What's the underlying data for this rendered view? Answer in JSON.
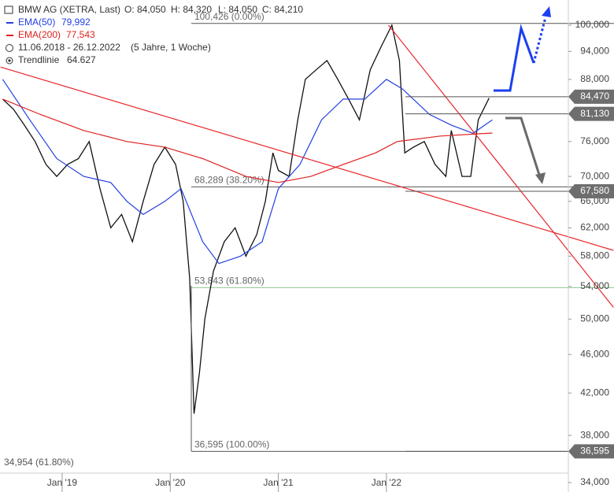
{
  "chart_data": {
    "type": "line",
    "log_scale": true,
    "ohlc": [
      "O: 84,050",
      "H: 84,320",
      "L: 84,050",
      "C: 84,210"
    ],
    "period": "11.06.2018 - 26.12.2022",
    "range_label": "(5 Jahre, 1 Woche)",
    "xlim": [
      2018.425,
      2023.683
    ],
    "xticks": [
      {
        "value": 2019,
        "label": "Jan '19"
      },
      {
        "value": 2020,
        "label": "Jan '20"
      },
      {
        "value": 2021,
        "label": "Jan '21"
      },
      {
        "value": 2022,
        "label": "Jan '22"
      }
    ],
    "ylim": [
      34000,
      100000
    ],
    "yticks": [
      {
        "value": 100000,
        "label": "100,000"
      },
      {
        "value": 94000,
        "label": "94,000"
      },
      {
        "value": 88000,
        "label": "88,000"
      },
      {
        "value": 76000,
        "label": "76,000"
      },
      {
        "value": 70000,
        "label": "70,000"
      },
      {
        "value": 66000,
        "label": "66,000"
      },
      {
        "value": 62000,
        "label": "62,000"
      },
      {
        "value": 58000,
        "label": "58,000"
      },
      {
        "value": 54000,
        "label": "54,000"
      },
      {
        "value": 50000,
        "label": "50,000"
      },
      {
        "value": 46000,
        "label": "46,000"
      },
      {
        "value": 42000,
        "label": "42,000"
      },
      {
        "value": 38000,
        "label": "38,000"
      },
      {
        "value": 34000,
        "label": "34,000"
      }
    ],
    "series": [
      {
        "name": "BMW AG (XETRA, Last)",
        "color": "#111111",
        "x": [
          2018.45,
          2018.55,
          2018.65,
          2018.75,
          2018.85,
          2018.95,
          2019.05,
          2019.15,
          2019.25,
          2019.35,
          2019.45,
          2019.55,
          2019.65,
          2019.75,
          2019.85,
          2019.95,
          2020.05,
          2020.12,
          2020.18,
          2020.22,
          2020.27,
          2020.32,
          2020.4,
          2020.5,
          2020.6,
          2020.7,
          2020.8,
          2020.88,
          2020.95,
          2021.0,
          2021.1,
          2021.18,
          2021.25,
          2021.35,
          2021.45,
          2021.55,
          2021.65,
          2021.75,
          2021.85,
          2021.95,
          2022.05,
          2022.12,
          2022.17,
          2022.25,
          2022.35,
          2022.45,
          2022.55,
          2022.6,
          2022.7,
          2022.78,
          2022.85,
          2022.95
        ],
        "values": [
          84000,
          82000,
          79000,
          76000,
          72000,
          70000,
          72000,
          73000,
          76000,
          68000,
          62000,
          64000,
          60000,
          66000,
          72000,
          75000,
          72000,
          66000,
          55000,
          40000,
          44000,
          50000,
          56000,
          60000,
          62000,
          58000,
          61000,
          66000,
          74000,
          71000,
          70000,
          80000,
          88000,
          90000,
          92000,
          88000,
          84000,
          80000,
          90000,
          95000,
          100000,
          92000,
          74000,
          75000,
          76000,
          72000,
          70000,
          78000,
          70000,
          70000,
          80000,
          84210
        ]
      },
      {
        "name": "EMA(50)",
        "last_label": "79,992",
        "color": "#2440e0",
        "x": [
          2018.45,
          2018.7,
          2018.95,
          2019.2,
          2019.45,
          2019.6,
          2019.75,
          2019.95,
          2020.1,
          2020.3,
          2020.45,
          2020.65,
          2020.85,
          2021.0,
          2021.2,
          2021.4,
          2021.6,
          2021.8,
          2022.0,
          2022.15,
          2022.4,
          2022.6,
          2022.8,
          2022.98
        ],
        "values": [
          88000,
          80000,
          73000,
          70000,
          69000,
          66000,
          64000,
          66000,
          68000,
          60000,
          57000,
          58000,
          60000,
          68000,
          72000,
          80000,
          84000,
          84000,
          88000,
          86000,
          81000,
          79000,
          77500,
          79992
        ]
      },
      {
        "name": "EMA(200)",
        "last_label": "77,543",
        "color": "#e02020",
        "x": [
          2018.45,
          2018.8,
          2019.2,
          2019.6,
          2019.95,
          2020.3,
          2020.7,
          2021.0,
          2021.3,
          2021.6,
          2021.9,
          2022.1,
          2022.5,
          2022.98
        ],
        "values": [
          84000,
          81000,
          78000,
          76000,
          75000,
          73000,
          70000,
          69000,
          70000,
          72000,
          74000,
          76000,
          77000,
          77543
        ]
      },
      {
        "name": "Trendlinie",
        "last_label": "64.627",
        "color": "#e8262a",
        "x": [
          2018.43,
          2024.1
        ],
        "values": [
          90600,
          58800
        ]
      },
      {
        "name": "Trendlinie",
        "color": "#e8262a",
        "x": [
          2022.02,
          2024.1
        ],
        "values": [
          100000,
          51400
        ]
      }
    ],
    "fib_levels": [
      {
        "value": 100426,
        "label": "100,426 (0.00%)"
      },
      {
        "value": 68289,
        "label": "68,289 (38.20%)"
      },
      {
        "value": 53843,
        "label": "53,843 (61.80%)"
      },
      {
        "value": 36595,
        "label": "36,595 (100.00%)"
      }
    ],
    "price_tags": [
      {
        "value": 84470,
        "label": "84,470"
      },
      {
        "value": 81130,
        "label": "81,130"
      },
      {
        "value": 67580,
        "label": "67,580"
      },
      {
        "value": 36595,
        "label": "36,595"
      }
    ],
    "annotation": "34,954 (61.80%)"
  }
}
